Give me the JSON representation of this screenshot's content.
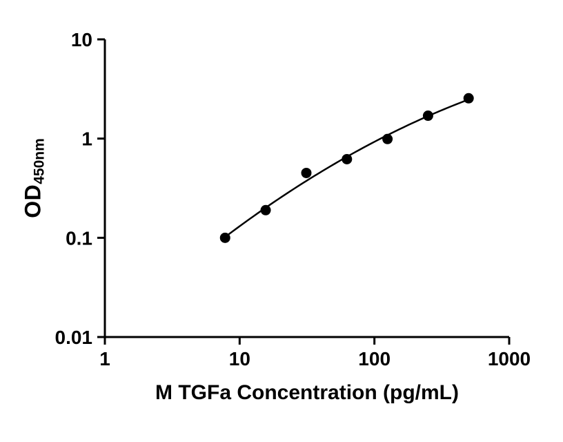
{
  "chart_data": {
    "type": "scatter",
    "title": "",
    "xlabel": "M TGFa Concentration (pg/mL)",
    "ylabel": "OD",
    "ylabel_subscript": "450nm",
    "x_scale": "log10",
    "y_scale": "log10",
    "xlim": [
      1,
      1000
    ],
    "ylim": [
      0.01,
      10
    ],
    "x_ticks": [
      1,
      10,
      100,
      1000
    ],
    "x_tick_labels": [
      "1",
      "10",
      "100",
      "1000"
    ],
    "y_ticks": [
      10,
      1,
      0.1,
      0.01
    ],
    "y_tick_labels": [
      "10",
      "1",
      "0.1",
      "0.01"
    ],
    "grid": false,
    "legend": "none",
    "series": [
      {
        "name": "standard-curve",
        "marker": "filled-circle",
        "color": "#000000",
        "fit": "log-log-quadratic",
        "points": [
          {
            "x": 7.8,
            "y": 0.1
          },
          {
            "x": 15.6,
            "y": 0.19
          },
          {
            "x": 31.25,
            "y": 0.45
          },
          {
            "x": 62.5,
            "y": 0.62
          },
          {
            "x": 125,
            "y": 0.99
          },
          {
            "x": 250,
            "y": 1.7
          },
          {
            "x": 500,
            "y": 2.55
          }
        ]
      }
    ]
  },
  "styles": {
    "background": "#ffffff",
    "axis_color": "#000000",
    "marker_color": "#000000",
    "curve_color": "#000000"
  }
}
